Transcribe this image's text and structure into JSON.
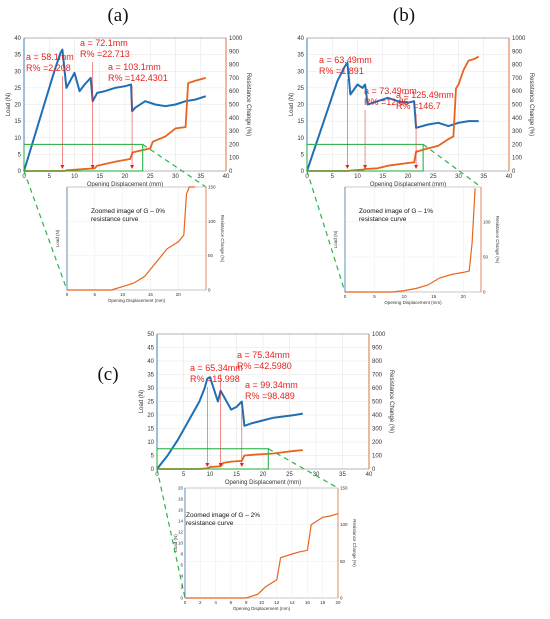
{
  "chart_data": [
    {
      "panel": "(a)",
      "type": "line",
      "xlabel": "Opening Displacement (mm)",
      "ylabel": "Load (N)",
      "y2label": "Resistance Change (%)",
      "xlim": [
        0,
        40
      ],
      "ylim": [
        0,
        40
      ],
      "y2lim": [
        0,
        1000
      ],
      "xticks": [
        0,
        5,
        10,
        15,
        20,
        25,
        30,
        35,
        40
      ],
      "yticks": [
        0,
        5,
        10,
        15,
        20,
        25,
        30,
        35,
        40
      ],
      "y2ticks": [
        0,
        100,
        200,
        300,
        400,
        500,
        600,
        700,
        800,
        900,
        1000
      ],
      "colors": {
        "load": "#1f6fb5",
        "resistance": "#e8641c",
        "zoom_box": "#2db34a",
        "annotation": "#e8231f"
      },
      "series": [
        {
          "axis": "left",
          "x": [
            0,
            2,
            4,
            6,
            7.2,
            7.6,
            8.4,
            10,
            11,
            12,
            13.2,
            13.6,
            14.5,
            16,
            18,
            20,
            21.2,
            21.4,
            22,
            24,
            26,
            28,
            30,
            32,
            34,
            36
          ],
          "y": [
            0,
            10,
            20,
            30,
            35.5,
            36.5,
            25,
            29.5,
            24,
            26,
            28,
            21,
            23.5,
            24,
            25,
            25.5,
            26,
            18,
            19,
            21,
            20,
            19.5,
            20,
            21,
            21.5,
            22.5
          ]
        },
        {
          "axis": "right",
          "x": [
            0,
            8,
            8.5,
            14,
            14.5,
            18,
            21,
            21.5,
            25,
            25.5,
            28,
            30,
            32,
            32.5,
            34,
            36
          ],
          "y": [
            0,
            0,
            5,
            20,
            40,
            70,
            90,
            140,
            170,
            220,
            260,
            320,
            330,
            660,
            680,
            700
          ]
        }
      ],
      "annotations": [
        {
          "text": [
            "a = 58.1mm",
            "R% =2.208"
          ],
          "x": 7.6
        },
        {
          "text": [
            "a = 72.1mm",
            "R% =22.713"
          ],
          "x": 13.6
        },
        {
          "text": [
            "a = 103.1mm",
            "R% =142.4301"
          ],
          "x": 21.4
        }
      ],
      "zoom_box": {
        "x": [
          0,
          23.5
        ],
        "y2": [
          0,
          200
        ]
      },
      "inset": {
        "caption": [
          "Zoomed image of G – 0%",
          "resistance curve"
        ],
        "ylabel": "Load (N)",
        "y2label": "Resistance Change (%)",
        "xlabel": "Opening Displacement (mm)",
        "xlim": [
          0,
          25
        ],
        "xticks": [
          0,
          5,
          10,
          15,
          20
        ],
        "y2lim": [
          0,
          150
        ],
        "y2ticks": [
          0,
          50,
          100,
          150
        ],
        "x": [
          0,
          8,
          10,
          12,
          14,
          15,
          16,
          17,
          18,
          19,
          20,
          21,
          21.5,
          22,
          23
        ],
        "y": [
          0,
          0,
          5,
          10,
          20,
          30,
          40,
          50,
          60,
          65,
          70,
          80,
          140,
          150,
          150
        ]
      }
    },
    {
      "panel": "(b)",
      "type": "line",
      "xlabel": "Opening Displacement (mm)",
      "ylabel": "Load (N)",
      "y2label": "Resistance Change (%)",
      "xlim": [
        0,
        40
      ],
      "ylim": [
        0,
        40
      ],
      "y2lim": [
        0,
        1000
      ],
      "xticks": [
        0,
        5,
        10,
        15,
        20,
        25,
        30,
        35,
        40
      ],
      "yticks": [
        0,
        5,
        10,
        15,
        20,
        25,
        30,
        35,
        40
      ],
      "y2ticks": [
        0,
        100,
        200,
        300,
        400,
        500,
        600,
        700,
        800,
        900,
        1000
      ],
      "colors": {
        "load": "#1f6fb5",
        "resistance": "#e8641c",
        "zoom_box": "#2db34a",
        "annotation": "#e8231f"
      },
      "series": [
        {
          "axis": "left",
          "x": [
            0,
            2,
            4,
            6,
            7.5,
            8,
            8.6,
            10,
            11,
            11.5,
            12,
            14,
            16,
            18,
            20,
            21.2,
            21.6,
            24,
            26,
            28,
            30,
            32,
            34
          ],
          "y": [
            0,
            9,
            18,
            27,
            31.5,
            32.5,
            23,
            26,
            25,
            26,
            20,
            21,
            22,
            21,
            20.5,
            21,
            13,
            14,
            14.5,
            13.5,
            14.5,
            15,
            15
          ]
        },
        {
          "axis": "right",
          "x": [
            0,
            8,
            8.5,
            11,
            11.5,
            14,
            16,
            20,
            21.2,
            21.6,
            24,
            26,
            28,
            29,
            29.5,
            30,
            31,
            32,
            33,
            34
          ],
          "y": [
            0,
            0,
            3,
            10,
            15,
            20,
            40,
            60,
            65,
            145,
            170,
            190,
            240,
            260,
            620,
            650,
            760,
            830,
            840,
            860
          ]
        }
      ],
      "annotations": [
        {
          "text": [
            "a = 63.49mm",
            "R% =1.891"
          ],
          "x": 8
        },
        {
          "text": [
            "a = 73.49mm",
            "R% =12.85"
          ],
          "x": 11.5
        },
        {
          "text": [
            "a = 125.49mm",
            "R% =146.7"
          ],
          "x": 21.6
        }
      ],
      "zoom_box": {
        "x": [
          0,
          23
        ],
        "y2": [
          0,
          200
        ]
      },
      "inset": {
        "caption": [
          "Zoomed image of G – 1%",
          "resistance curve"
        ],
        "ylabel": "Load (N)",
        "y2label": "Resistance Change (%)",
        "xlabel": "Opening Displacement (mm)",
        "xlim": [
          0,
          23
        ],
        "xticks": [
          0,
          5,
          10,
          15,
          20
        ],
        "y2lim": [
          0,
          150
        ],
        "y2ticks": [
          0,
          50,
          100
        ],
        "x": [
          0,
          8,
          10,
          12,
          14,
          16,
          18,
          20,
          21,
          21.5,
          22
        ],
        "y": [
          0,
          0,
          2,
          5,
          10,
          20,
          25,
          28,
          30,
          70,
          148
        ]
      }
    },
    {
      "panel": "(c)",
      "type": "line",
      "xlabel": "Opening Displacement (mm)",
      "ylabel": "Load (N)",
      "y2label": "Resistance Change (%)",
      "xlim": [
        0,
        40
      ],
      "ylim": [
        0,
        50
      ],
      "y2lim": [
        0,
        1000
      ],
      "xticks": [
        0,
        5,
        10,
        15,
        20,
        25,
        30,
        35,
        40
      ],
      "yticks": [
        0,
        5,
        10,
        15,
        20,
        25,
        30,
        35,
        40,
        45,
        50
      ],
      "y2ticks": [
        0,
        100,
        200,
        300,
        400,
        500,
        600,
        700,
        800,
        900,
        1000
      ],
      "colors": {
        "load": "#1f6fb5",
        "resistance": "#e8641c",
        "zoom_box": "#2db34a",
        "annotation": "#e8231f"
      },
      "series": [
        {
          "axis": "left",
          "x": [
            0,
            2,
            4,
            6,
            8,
            9,
            9.5,
            10,
            11.5,
            12,
            14,
            15,
            16,
            16.5,
            18,
            20,
            22,
            24,
            26,
            27.5
          ],
          "y": [
            0,
            5,
            11,
            18,
            25,
            30,
            33.5,
            34,
            25,
            29,
            22,
            23,
            25,
            16,
            17,
            18,
            19,
            19.5,
            20,
            20.5
          ]
        },
        {
          "axis": "right",
          "x": [
            0,
            8,
            9.5,
            10,
            12,
            12.5,
            14,
            16,
            16.5,
            18,
            20,
            22,
            24,
            26,
            27.5
          ],
          "y": [
            0,
            0,
            5,
            15,
            20,
            45,
            55,
            60,
            100,
            105,
            110,
            115,
            125,
            135,
            140
          ]
        }
      ],
      "annotations": [
        {
          "text": [
            "a = 65.34mm",
            "R% =15.998"
          ],
          "x": 9.5
        },
        {
          "text": [
            "a = 75.34mm",
            "R% =42.5980"
          ],
          "x": 12
        },
        {
          "text": [
            "a = 99.34mm",
            "R% =98.489"
          ],
          "x": 16
        }
      ],
      "zoom_box": {
        "x": [
          0,
          21
        ],
        "y2": [
          0,
          150
        ]
      },
      "inset": {
        "caption": [
          "Zoomed image of G – 2%",
          "resistance curve"
        ],
        "ylabel": "Load (N)",
        "y2label": "Resistance Change (%)",
        "xlabel": "Opening Displacement (mm)",
        "xlim": [
          0,
          20
        ],
        "xticks": [
          0,
          2,
          4,
          6,
          8,
          10,
          12,
          14,
          16,
          18,
          20
        ],
        "ylim": [
          0,
          20
        ],
        "yticks": [
          0,
          2,
          4,
          6,
          8,
          10,
          12,
          14,
          16,
          18,
          20
        ],
        "y2lim": [
          0,
          150
        ],
        "y2ticks": [
          0,
          50,
          100,
          150
        ],
        "x": [
          0,
          8,
          9.5,
          10,
          10.5,
          12,
          12.5,
          14,
          15,
          16,
          16.5,
          18,
          19,
          20
        ],
        "y": [
          0,
          0,
          5,
          10,
          15,
          25,
          55,
          60,
          63,
          65,
          100,
          110,
          112,
          115
        ]
      }
    }
  ]
}
